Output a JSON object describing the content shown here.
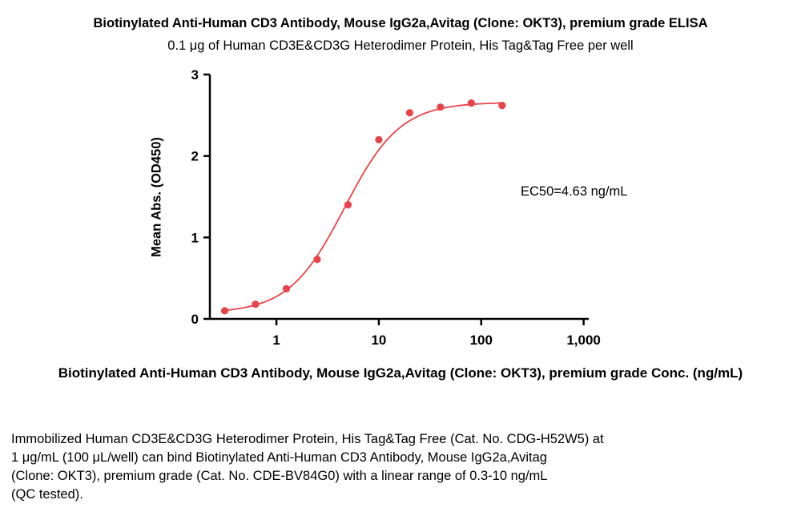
{
  "title": "Biotinylated Anti-Human CD3 Antibody, Mouse IgG2a,Avitag (Clone: OKT3), premium grade ELISA",
  "subtitle": "0.1 μg of Human CD3E&CD3G Heterodimer Protein, His Tag&Tag Free per well",
  "annotation": "EC50=4.63 ng/mL",
  "footer": "Immobilized Human CD3E&CD3G Heterodimer Protein, His Tag&Tag Free (Cat. No. CDG-H52W5) at\n1 μg/mL (100 μL/well) can bind Biotinylated Anti-Human CD3 Antibody, Mouse IgG2a,Avitag\n(Clone: OKT3), premium grade (Cat. No. CDE-BV84G0) with a linear range of 0.3-10 ng/mL\n(QC tested).",
  "chart_data": {
    "type": "scatter",
    "title": "Biotinylated Anti-Human CD3 Antibody, Mouse IgG2a,Avitag (Clone: OKT3), premium grade ELISA",
    "subtitle": "0.1 μg of Human CD3E&CD3G Heterodimer Protein, His Tag&Tag Free per well",
    "xlabel": "Biotinylated Anti-Human CD3 Antibody, Mouse IgG2a,Avitag (Clone: OKT3), premium grade Conc. (ng/mL)",
    "ylabel": "Mean Abs. (OD450)",
    "x_scale": "log",
    "x": [
      0.3125,
      0.625,
      1.25,
      2.5,
      5,
      10,
      20,
      40,
      80,
      160
    ],
    "y": [
      0.1,
      0.18,
      0.37,
      0.73,
      1.4,
      2.2,
      2.53,
      2.6,
      2.65,
      2.62
    ],
    "x_ticks": [
      {
        "value": 1,
        "label": "1"
      },
      {
        "value": 10,
        "label": "10"
      },
      {
        "value": 100,
        "label": "100"
      },
      {
        "value": 1000,
        "label": "1,000"
      }
    ],
    "y_ticks": [
      {
        "value": 0,
        "label": "0"
      },
      {
        "value": 1,
        "label": "1"
      },
      {
        "value": 2,
        "label": "2"
      },
      {
        "value": 3,
        "label": "3"
      }
    ],
    "x_domain_log": [
      -0.65,
      3.05
    ],
    "ylim": [
      0,
      3
    ],
    "fit": {
      "model": "4PL",
      "bottom": 0.07,
      "top": 2.66,
      "ec50": 4.63,
      "hill": 1.6
    },
    "point_color": "#e84349",
    "line_color": "#e84349",
    "axis_color": "#000000",
    "legend": "none",
    "grid": false,
    "annotation": "EC50=4.63 ng/mL"
  }
}
